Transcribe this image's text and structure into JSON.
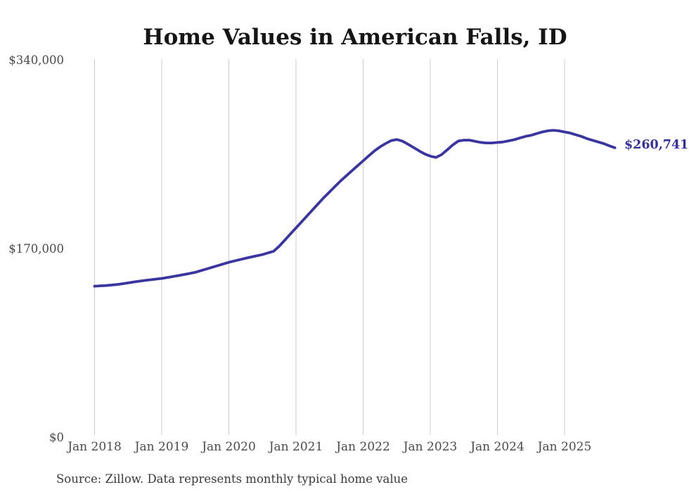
{
  "page": {
    "background_color": "#ffffff"
  },
  "chart_data": {
    "type": "line",
    "title": "Home Values in American Falls, ID",
    "source_note": "Source: Zillow. Data represents monthly typical home value",
    "end_label": "$260,741",
    "final_value": 260741,
    "series_name": "Monthly typical home value",
    "x_start_month": "2018-01",
    "x_end_month": "2025-10",
    "x_tick_labels": [
      "Jan 2018",
      "Jan 2019",
      "Jan 2020",
      "Jan 2021",
      "Jan 2022",
      "Jan 2023",
      "Jan 2024",
      "Jan 2025"
    ],
    "x_tick_month_indices": [
      0,
      12,
      24,
      36,
      48,
      60,
      72,
      84
    ],
    "y_ticks": [
      {
        "label": "$0",
        "value": 0
      },
      {
        "label": "$170,000",
        "value": 170000
      },
      {
        "label": "$340,000",
        "value": 340000
      }
    ],
    "ylim": [
      0,
      340000
    ],
    "grid": "vertical-only",
    "legend": "none",
    "values": [
      136000,
      136300,
      136600,
      137000,
      137500,
      138200,
      139000,
      139800,
      140500,
      141200,
      141800,
      142400,
      143000,
      143800,
      144700,
      145600,
      146500,
      147500,
      148500,
      150000,
      151500,
      153000,
      154500,
      156000,
      157500,
      158800,
      160000,
      161200,
      162300,
      163400,
      164500,
      166000,
      167500,
      172000,
      177500,
      183000,
      188500,
      194000,
      199500,
      205000,
      210500,
      216000,
      221000,
      226000,
      231000,
      235500,
      240000,
      244500,
      249000,
      253500,
      257800,
      261500,
      264500,
      267200,
      268200,
      266800,
      264000,
      261000,
      258000,
      255200,
      253200,
      252000,
      254500,
      258800,
      263200,
      266800,
      267600,
      267600,
      266600,
      265600,
      265100,
      265100,
      265500,
      266000,
      267000,
      268000,
      269500,
      271000,
      272000,
      273500,
      275000,
      276000,
      276500,
      276000,
      275000,
      274000,
      272500,
      271000,
      269000,
      267500,
      266000,
      264500,
      262500,
      260741
    ],
    "colors": {
      "line": "#3a35a0",
      "end_label": "#32309f",
      "grid": "#cccccc",
      "tick_text": "#4a4a4a",
      "title_text": "#151515",
      "source_text": "#3a3a3a"
    }
  }
}
